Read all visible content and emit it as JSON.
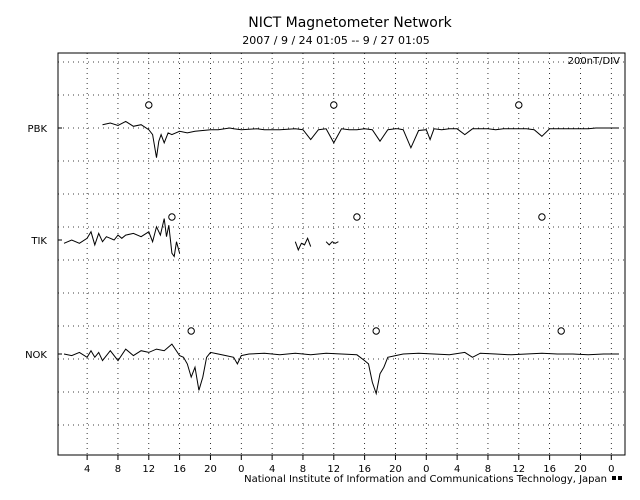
{
  "chart_data": {
    "type": "line",
    "title": "NICT Magnetometer Network",
    "subtitle": "2007 / 9 / 24  01:05 -- 9 / 27  01:05",
    "scale_label": "200nT/DIV",
    "footer": "National Institute of Information and Communications Technology, Japan",
    "x_unit": "hours since 2007/09/24 01:05 (UT)",
    "xlim": [
      0,
      72
    ],
    "x_tick_labels": [
      "4",
      "8",
      "12",
      "16",
      "20",
      "0",
      "4",
      "8",
      "12",
      "16",
      "20",
      "0",
      "4",
      "8",
      "12",
      "16",
      "20",
      "0"
    ],
    "x_tick_hours": [
      3,
      7,
      11,
      15,
      19,
      23,
      27,
      31,
      35,
      39,
      43,
      47,
      51,
      55,
      59,
      63,
      67,
      71
    ],
    "y_unit": "nT (relative, 200 nT per division)",
    "grid": true,
    "grid_style": "dotted",
    "series": [
      {
        "name": "PBK",
        "color": "#000000",
        "local_noon_markers_hours": [
          11,
          35,
          59
        ],
        "x": [
          5,
          6,
          7,
          8,
          9,
          10,
          11,
          11.5,
          12,
          12.3,
          12.6,
          13,
          13.5,
          14,
          15,
          16,
          17,
          18,
          19,
          20,
          21.5,
          22,
          23,
          24,
          25,
          26,
          28,
          30,
          31,
          32,
          33,
          34,
          35,
          36,
          37,
          38,
          39,
          40,
          41,
          42,
          43,
          43.3,
          44,
          45,
          46,
          47,
          47.5,
          48,
          49,
          50,
          51,
          52,
          53,
          54,
          55,
          56,
          57,
          58,
          59,
          60,
          61,
          62,
          63,
          64,
          65,
          66,
          67,
          68,
          69,
          70,
          71,
          72
        ],
        "values": [
          20,
          30,
          15,
          40,
          10,
          20,
          -10,
          -40,
          -180,
          -80,
          -40,
          -90,
          -30,
          -40,
          -20,
          -30,
          -20,
          -15,
          -10,
          -10,
          0,
          -5,
          -10,
          -8,
          -5,
          -10,
          -10,
          -5,
          -10,
          -70,
          -10,
          -5,
          -90,
          -5,
          -10,
          -10,
          -5,
          -10,
          -80,
          -10,
          -5,
          -5,
          -10,
          -120,
          -15,
          -10,
          -70,
          -5,
          -10,
          -5,
          -5,
          -40,
          -5,
          -5,
          -5,
          -10,
          -5,
          -5,
          -5,
          -5,
          -10,
          -50,
          -5,
          -5,
          -5,
          -5,
          -5,
          -5,
          0,
          0,
          0,
          0
        ]
      },
      {
        "name": "TIK",
        "color": "#000000",
        "local_noon_markers_hours": [
          14,
          38,
          62
        ],
        "x": [
          0,
          1,
          2,
          3,
          3.5,
          4,
          4.5,
          5,
          5.5,
          6,
          6.5,
          7,
          7.5,
          8,
          9,
          10,
          11,
          11.5,
          12,
          12.5,
          13,
          13.3,
          13.6,
          14,
          14.3,
          14.6,
          15,
          null,
          30,
          30.4,
          30.8,
          31.2,
          31.6,
          32,
          null,
          34,
          34.4,
          34.8,
          35.2,
          35.6
        ],
        "values": [
          -20,
          0,
          -20,
          10,
          50,
          -30,
          40,
          -10,
          20,
          10,
          0,
          30,
          10,
          30,
          40,
          20,
          50,
          -10,
          80,
          30,
          130,
          20,
          90,
          -80,
          -100,
          -10,
          -80,
          null,
          -10,
          -60,
          -20,
          -30,
          10,
          -40,
          null,
          -10,
          -30,
          -10,
          -20,
          -10
        ]
      },
      {
        "name": "NOK",
        "color": "#000000",
        "local_noon_markers_hours": [
          16.5,
          40.5,
          64.5
        ],
        "x": [
          0,
          1,
          2,
          3,
          3.5,
          4,
          4.5,
          5,
          6,
          7,
          8,
          9,
          10,
          11,
          12,
          13,
          14,
          15,
          15.5,
          16,
          16.5,
          17,
          17.5,
          18,
          18.5,
          19,
          20,
          21,
          22,
          22.5,
          23,
          24,
          26,
          28,
          30,
          32,
          34,
          36,
          38,
          39,
          39.5,
          40,
          40.5,
          41,
          41.5,
          42,
          43,
          44,
          46,
          48,
          50,
          52,
          53,
          54,
          56,
          58,
          60,
          62,
          64,
          66,
          68,
          70,
          72
        ],
        "values": [
          0,
          -10,
          10,
          -20,
          20,
          -20,
          10,
          -40,
          20,
          -40,
          30,
          -10,
          20,
          10,
          30,
          20,
          60,
          -10,
          -20,
          -60,
          -140,
          -80,
          -220,
          -140,
          -20,
          10,
          0,
          -10,
          -20,
          -60,
          -10,
          0,
          5,
          -5,
          5,
          -5,
          5,
          0,
          -5,
          -40,
          -60,
          -170,
          -240,
          -120,
          -80,
          -20,
          -10,
          0,
          5,
          0,
          -5,
          10,
          -20,
          5,
          0,
          -5,
          0,
          5,
          0,
          0,
          -5,
          0,
          0
        ]
      }
    ]
  }
}
